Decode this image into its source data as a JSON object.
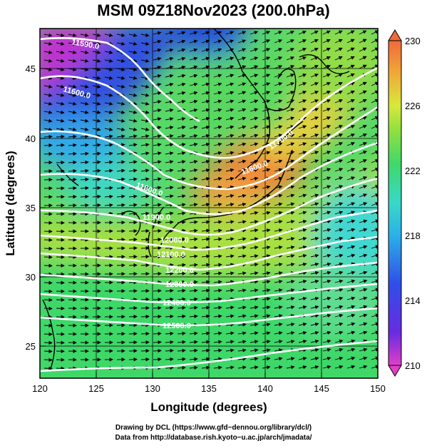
{
  "title": "MSM 09Z18Nov2023 (200.0hPa)",
  "map": {
    "xlabel": "Longitude (degrees)",
    "ylabel": "Latitude  (degrees)",
    "x_ticks": [
      "120",
      "125",
      "130",
      "135",
      "140",
      "145",
      "150"
    ],
    "y_ticks": [
      "45",
      "40",
      "35",
      "30",
      "25"
    ],
    "lon_range": [
      120,
      150
    ],
    "lat_range": [
      22.4,
      47.6
    ],
    "field": "temperature shading with wind vectors and white geopotential height contours",
    "contour_labels": [
      "11590.0",
      "11600.0",
      "11600.0",
      "11700.0",
      "11800.0",
      "11900.0",
      "12000.0",
      "12100.0",
      "12200.0",
      "12300.0",
      "12400.0",
      "12500.0"
    ]
  },
  "colorbar": {
    "min": 210,
    "max": 230,
    "tick_labels": [
      "230",
      "226",
      "222",
      "218",
      "214",
      "210"
    ],
    "colors": [
      "#e040c8",
      "#6a2be0",
      "#2f4ee8",
      "#2bb0e8",
      "#38d8c8",
      "#40d86a",
      "#8ce040",
      "#d8e83a",
      "#f0a838",
      "#f06a3a"
    ]
  },
  "credits": {
    "line1": "Drawing by DCL (https://www.gfd−dennou.org/library/dcl/)",
    "line2": "Data from http://database.rish.kyoto−u.ac.jp/arch/jmadata/"
  }
}
